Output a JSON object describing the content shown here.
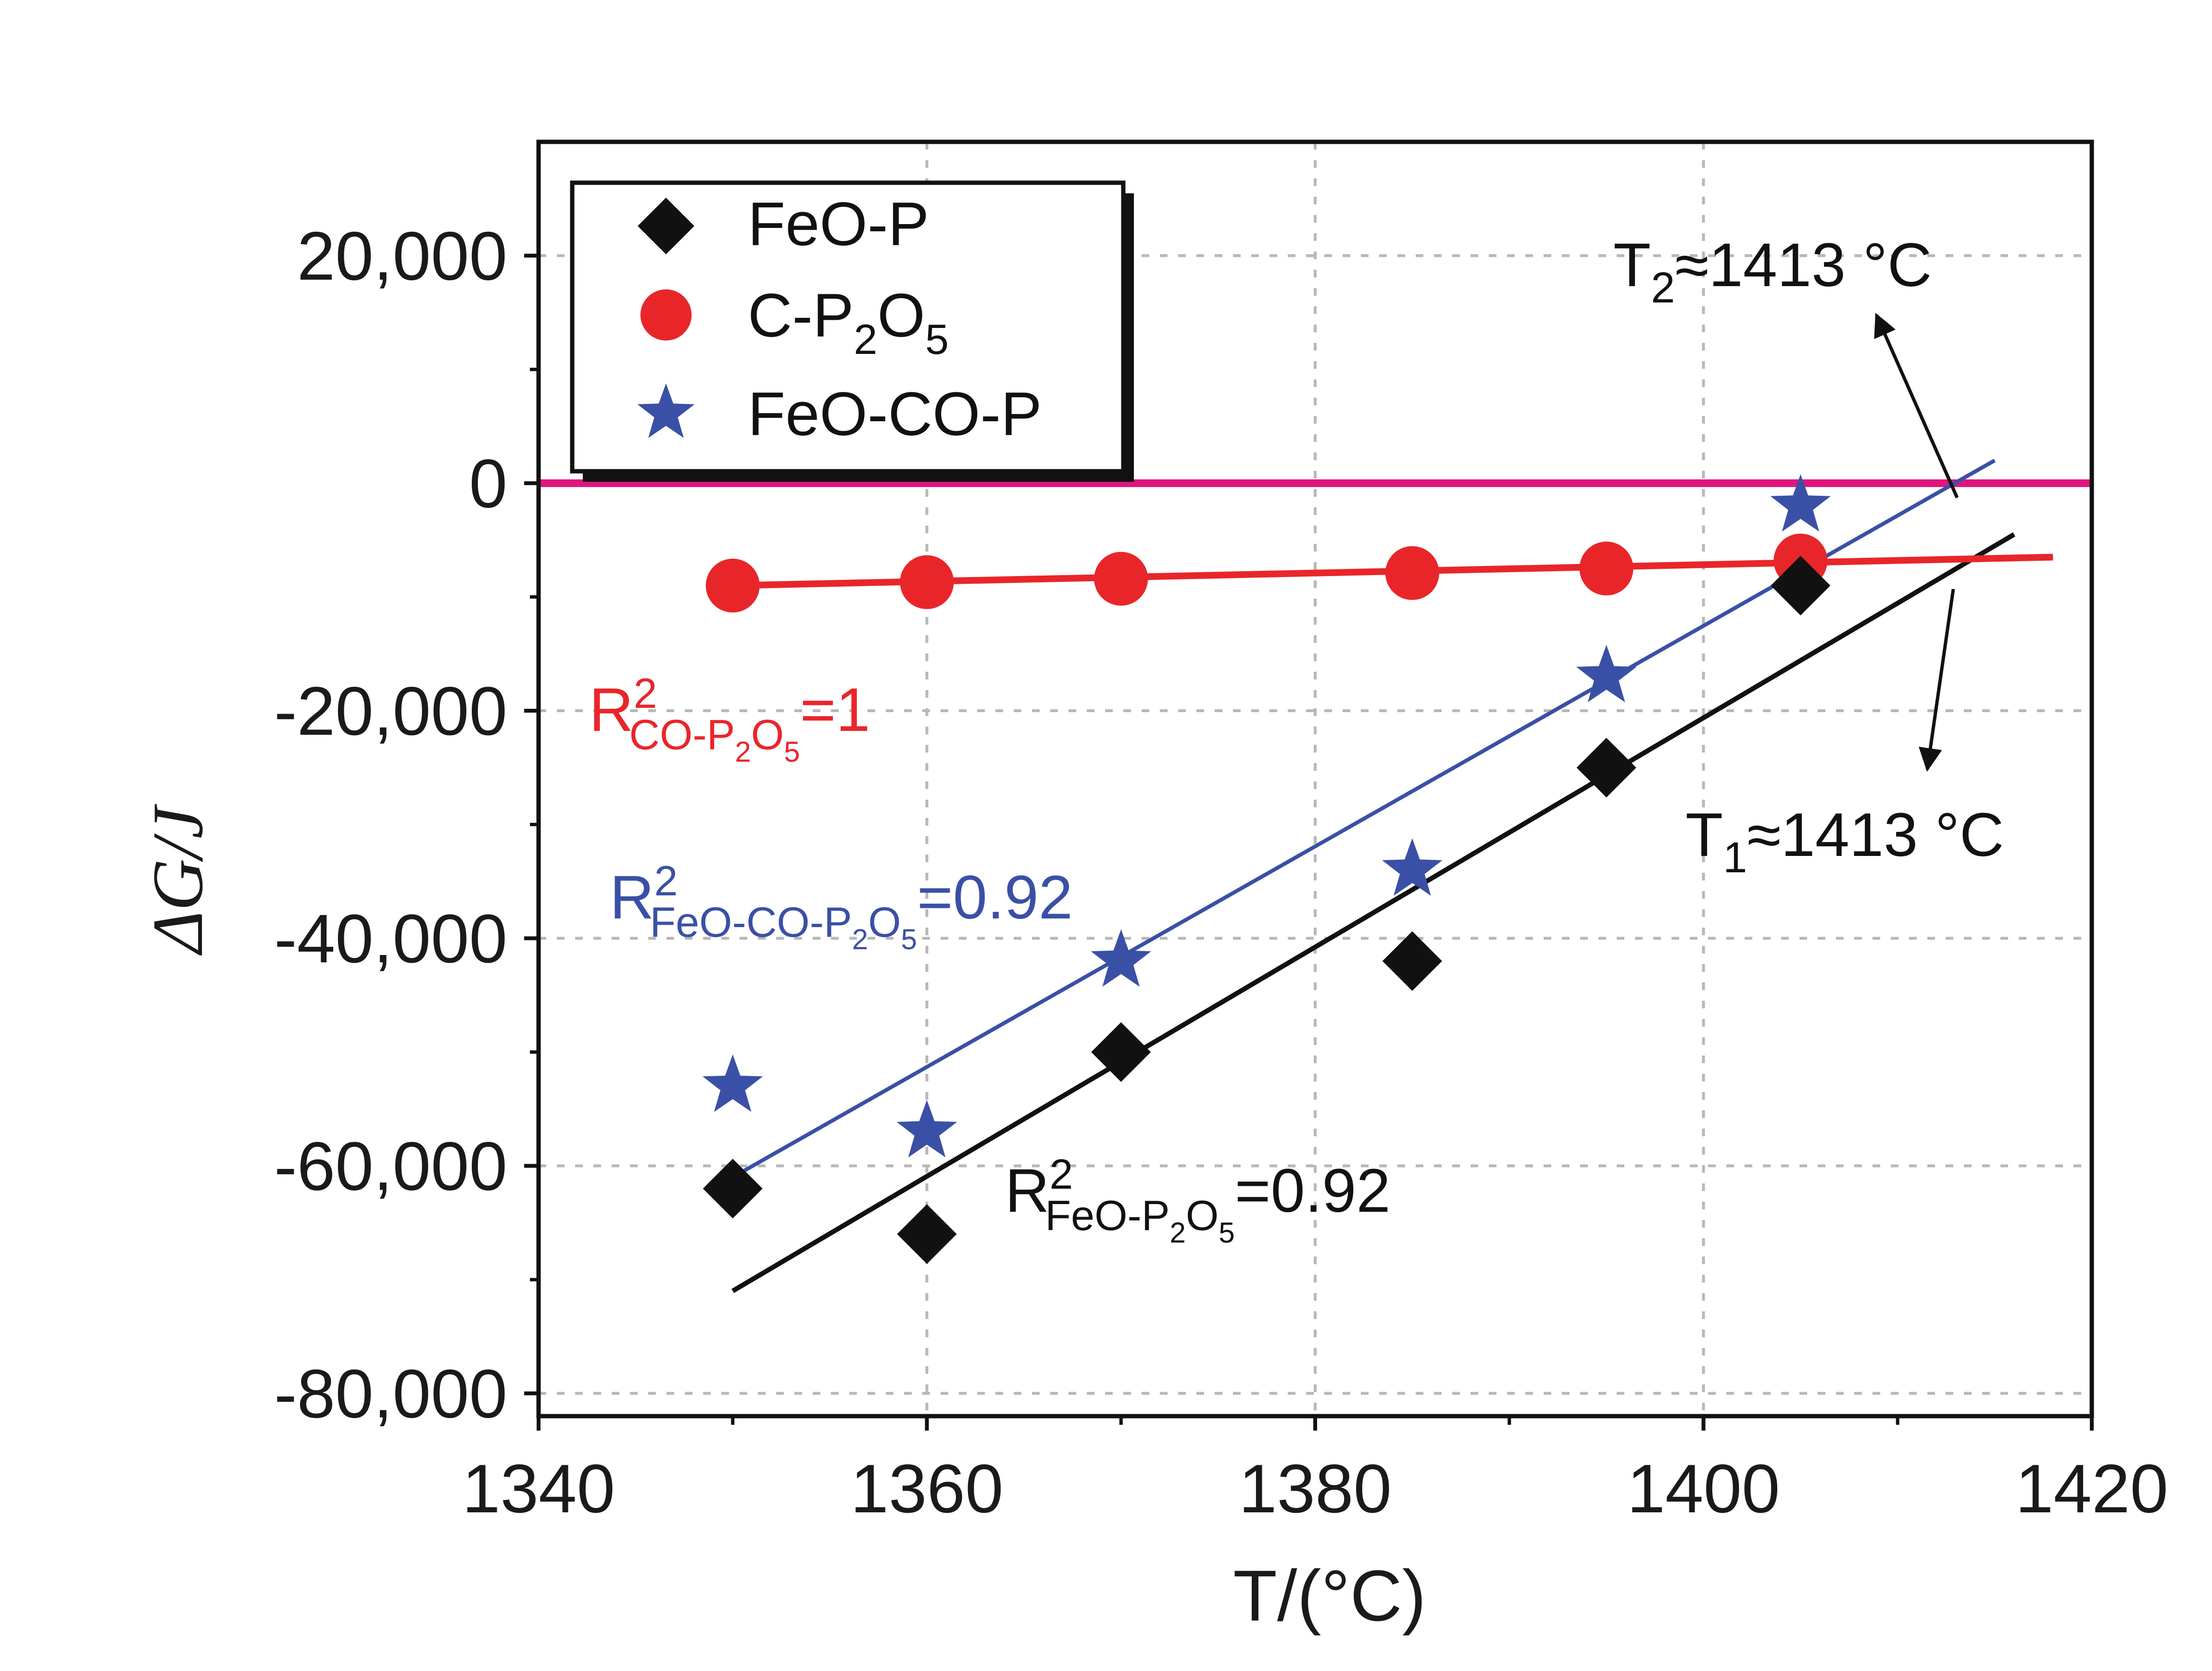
{
  "chart_data": {
    "type": "scatter",
    "title": "",
    "xlabel": "T/(°C)",
    "ylabel": "ΔG/J",
    "xlim": [
      1340,
      1420
    ],
    "ylim": [
      -82000,
      30000
    ],
    "xticks": [
      1340,
      1360,
      1380,
      1400,
      1420
    ],
    "xtick_labels": [
      "1340",
      "1360",
      "1380",
      "1400",
      "1420"
    ],
    "yticks": [
      20000,
      0,
      -20000,
      -40000,
      -60000,
      -80000
    ],
    "ytick_labels": [
      "20,000",
      "0",
      "-20,000",
      "-40,000",
      "-60,000",
      "-80,000"
    ],
    "grid": true,
    "legend_position": "top-left",
    "zero_line_color": "#e0157f",
    "series": [
      {
        "name": "FeO-P",
        "legend_label": "FeO-P",
        "marker": "diamond",
        "color": "#111111",
        "x": [
          1350,
          1360,
          1370,
          1385,
          1395,
          1405
        ],
        "y": [
          -62000,
          -66000,
          -50000,
          -42000,
          -25000,
          -9000
        ],
        "fit": {
          "x": [
            1350,
            1416
          ],
          "y": [
            -71000,
            -4500
          ]
        }
      },
      {
        "name": "C-P2O5",
        "legend_label": "C-P",
        "legend_sub1": "2",
        "legend_mid": "O",
        "legend_sub2": "5",
        "marker": "circle",
        "color": "#e8262a",
        "x": [
          1350,
          1360,
          1370,
          1385,
          1395,
          1405
        ],
        "y": [
          -9000,
          -8700,
          -8400,
          -7900,
          -7500,
          -6800
        ],
        "fit": {
          "x": [
            1350,
            1418
          ],
          "y": [
            -9000,
            -6500
          ]
        }
      },
      {
        "name": "FeO-CO-P",
        "legend_label": "FeO-CO-P",
        "marker": "star",
        "color": "#3a50a6",
        "x": [
          1350,
          1360,
          1370,
          1385,
          1395,
          1405
        ],
        "y": [
          -53000,
          -57000,
          -42000,
          -34000,
          -17000,
          -2000
        ],
        "fit": {
          "x": [
            1350,
            1415
          ],
          "y": [
            -61000,
            2000
          ]
        }
      }
    ],
    "annotations": {
      "t2": {
        "pre": "T",
        "sub": "2",
        "post": "≈1413 °C",
        "color": "#111111"
      },
      "t1": {
        "pre": "T",
        "sub": "1",
        "post": "≈1413 °C",
        "color": "#111111"
      },
      "r2_co": {
        "pre": "R",
        "sup": "2",
        "sub": "CO-P",
        "sub_sub1": "2",
        "sub_mid": "O",
        "sub_sub2": "5",
        "post": "=1",
        "color": "#e8262a"
      },
      "r2_feo_co": {
        "pre": "R",
        "sup": "2",
        "sub": "FeO-CO-P",
        "sub_sub1": "2",
        "sub_mid": "O",
        "sub_sub2": "5",
        "post": "=0.92",
        "color": "#3a50a6"
      },
      "r2_feo": {
        "pre": "R",
        "sup": "2",
        "sub": "FeO-P",
        "sub_sub1": "2",
        "sub_mid": "O",
        "sub_sub2": "5",
        "post": "=0.92",
        "color": "#111111"
      }
    }
  }
}
